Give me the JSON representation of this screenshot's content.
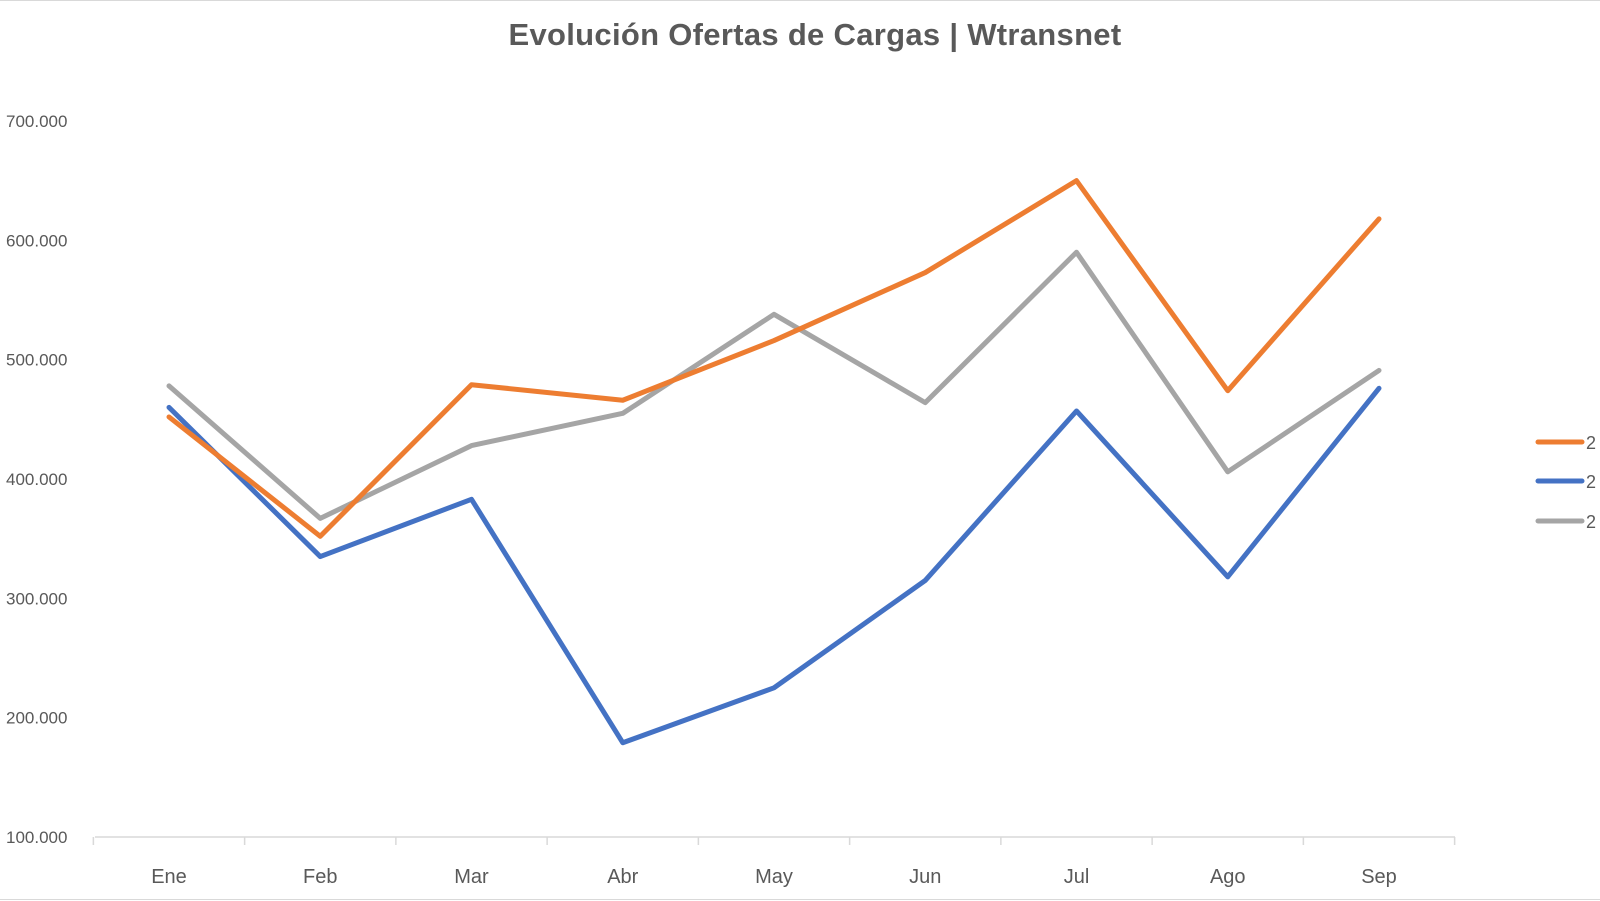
{
  "chart_data": {
    "type": "line",
    "title": "Evolución Ofertas de Cargas | Wtransnet",
    "xlabel": "",
    "ylabel": "",
    "categories": [
      "Ene",
      "Feb",
      "Mar",
      "Abr",
      "May",
      "Jun",
      "Jul",
      "Ago",
      "Sep"
    ],
    "ylim": [
      100000,
      700000
    ],
    "yticks": [
      100000,
      200000,
      300000,
      400000,
      500000,
      600000,
      700000
    ],
    "ytick_labels": [
      "100.000",
      "200.000",
      "300.000",
      "400.000",
      "500.000",
      "600.000",
      "700.000"
    ],
    "grid": false,
    "legend_position": "right",
    "series": [
      {
        "name": "2",
        "color": "#ED7D31",
        "values": [
          452000,
          352000,
          479000,
          466000,
          516000,
          573000,
          650000,
          474000,
          618000
        ]
      },
      {
        "name": "2",
        "color": "#4472C4",
        "values": [
          460000,
          335000,
          383000,
          179000,
          225000,
          315000,
          457000,
          318000,
          476000
        ]
      },
      {
        "name": "2",
        "color": "#A5A5A5",
        "values": [
          478000,
          367000,
          428000,
          455000,
          538000,
          464000,
          590000,
          406000,
          491000
        ]
      }
    ]
  }
}
